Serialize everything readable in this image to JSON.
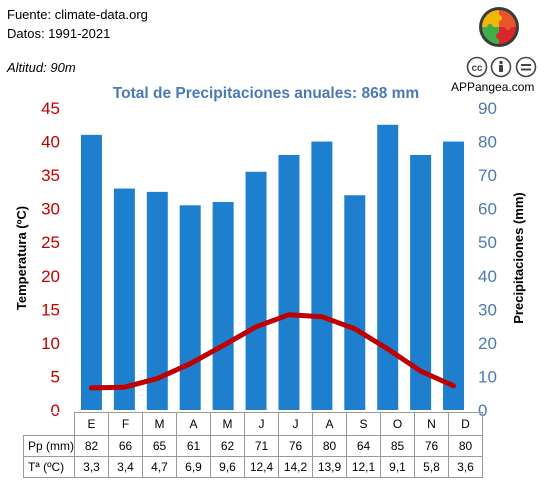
{
  "header": {
    "source": "Fuente: climate-data.org",
    "period": "Datos: 1991-2021",
    "altitude": "Altitud: 90m",
    "brand": "APPangea.com"
  },
  "icons": [
    "puzzle-logo-icon",
    "creative-commons-icon",
    "attribution-icon",
    "equals-icon"
  ],
  "colors": {
    "bars": "#1f7fcf",
    "temperature_line": "#c00000",
    "left_axis": "#c00000",
    "title": "#4a7ab4"
  },
  "chart_data": {
    "type": "bar",
    "title": "Total de Precipitaciones anuales: 868 mm",
    "categories": [
      "E",
      "F",
      "M",
      "A",
      "M",
      "J",
      "J",
      "A",
      "S",
      "O",
      "N",
      "D"
    ],
    "series": [
      {
        "name": "Pp (mm)",
        "type": "bar",
        "axis": "right",
        "values": [
          82,
          66,
          65,
          61,
          62,
          71,
          76,
          80,
          64,
          85,
          76,
          80
        ]
      },
      {
        "name": "Tª (ºC)",
        "type": "line",
        "axis": "left",
        "values": [
          3.3,
          3.4,
          4.7,
          6.9,
          9.6,
          12.4,
          14.2,
          13.9,
          12.1,
          9.1,
          5.8,
          3.6
        ]
      }
    ],
    "y_left": {
      "label": "Temperatura (ºC)",
      "lim": [
        0,
        45
      ],
      "ticks": [
        0,
        5,
        10,
        15,
        20,
        25,
        30,
        35,
        40,
        45
      ]
    },
    "y_right": {
      "label": "Precipitaciones (mm)",
      "lim": [
        0,
        90
      ],
      "ticks": [
        0,
        10,
        20,
        30,
        40,
        50,
        60,
        70,
        80,
        90
      ]
    },
    "table": {
      "precip_label": "Pp (mm)",
      "precip_values": [
        "82",
        "66",
        "65",
        "61",
        "62",
        "71",
        "76",
        "80",
        "64",
        "85",
        "76",
        "80"
      ],
      "temp_label": "Tª (ºC)",
      "temp_values": [
        "3,3",
        "3,4",
        "4,7",
        "6,9",
        "9,6",
        "12,4",
        "14,2",
        "13,9",
        "12,1",
        "9,1",
        "5,8",
        "3,6"
      ]
    },
    "grid": false,
    "legend": "table-below"
  }
}
